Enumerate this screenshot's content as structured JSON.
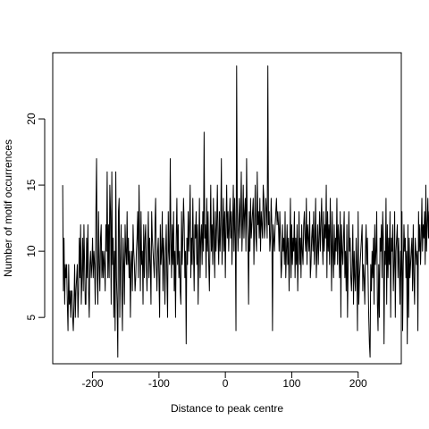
{
  "chart_data": {
    "type": "line",
    "title": "",
    "xlabel": "Distance to peak centre",
    "ylabel": "Number of motif occurrences",
    "xlim": [
      -260,
      265
    ],
    "ylim": [
      1.5,
      25
    ],
    "x_ticks": [
      -200,
      -100,
      0,
      100,
      200
    ],
    "x_tick_labels": [
      "-200",
      "-100",
      "0",
      "100",
      "200"
    ],
    "y_ticks": [
      5,
      10,
      15,
      20
    ],
    "y_tick_labels": [
      "5",
      "10",
      "15",
      "20"
    ],
    "grid": false,
    "legend": "none",
    "line_color": "#000000",
    "series": [
      {
        "x_start": -245,
        "x_step": 1,
        "values": [
          15,
          7,
          11,
          6,
          9,
          8,
          9,
          6,
          4,
          9,
          6,
          7,
          5,
          7,
          7,
          5,
          4,
          6,
          9,
          5,
          7,
          8,
          9,
          5,
          7,
          11,
          8,
          12,
          6,
          8,
          11,
          7,
          12,
          9,
          6,
          6,
          11,
          8,
          12,
          7,
          5,
          9,
          10,
          8,
          9,
          11,
          8,
          10,
          9,
          6,
          13,
          17,
          8,
          6,
          13,
          9,
          7,
          11,
          12,
          8,
          10,
          8,
          10,
          9,
          7,
          12,
          10,
          16,
          8,
          12,
          8,
          15,
          13,
          6,
          16,
          9,
          11,
          5,
          10,
          4,
          16,
          8,
          6,
          2,
          13,
          14,
          5,
          9,
          12,
          7,
          4,
          11,
          9,
          6,
          12,
          10,
          9,
          13,
          9,
          11,
          8,
          10,
          5,
          9,
          10,
          7,
          12,
          10,
          9,
          7,
          8,
          10,
          11,
          13,
          8,
          15,
          11,
          7,
          13,
          9,
          10,
          6,
          12,
          8,
          11,
          12,
          9,
          7,
          10,
          13,
          8,
          11,
          9,
          6,
          13,
          11,
          10,
          9,
          8,
          12,
          14,
          9,
          7,
          10,
          11,
          8,
          5,
          12,
          9,
          10,
          13,
          7,
          11,
          9,
          6,
          10,
          12,
          8,
          5,
          13,
          10,
          9,
          17,
          11,
          8,
          12,
          9,
          13,
          7,
          10,
          5,
          11,
          14,
          9,
          12,
          8,
          10,
          7,
          6,
          13,
          9,
          11,
          14,
          12,
          8,
          10,
          3,
          11,
          9,
          13,
          10,
          12,
          15,
          8,
          11,
          9,
          14,
          10,
          7,
          12,
          11,
          13,
          9,
          12,
          6,
          10,
          14,
          8,
          11,
          12,
          9,
          13,
          10,
          19,
          11,
          12,
          8,
          14,
          10,
          13,
          9,
          7,
          11,
          15,
          10,
          12,
          9,
          14,
          11,
          8,
          13,
          10,
          12,
          15,
          11,
          9,
          13,
          10,
          12,
          17,
          9,
          11,
          14,
          10,
          13,
          8,
          12,
          15,
          11,
          13,
          10,
          12,
          14,
          11,
          13,
          9,
          12,
          15,
          10,
          14,
          11,
          4,
          24,
          13,
          10,
          12,
          14,
          11,
          13,
          16,
          10,
          12,
          15,
          11,
          13,
          14,
          10,
          17,
          12,
          11,
          6,
          13,
          10,
          14,
          11,
          12,
          13,
          14,
          9,
          12,
          15,
          11,
          10,
          16,
          12,
          13,
          11,
          14,
          10,
          13,
          12,
          11,
          15,
          14,
          11,
          12,
          14,
          13,
          11,
          24,
          12,
          13,
          10,
          11,
          14,
          12,
          4,
          12,
          11,
          10,
          12,
          13,
          14,
          12,
          13,
          12,
          10,
          13,
          11,
          8,
          9,
          12,
          10,
          11,
          9,
          13,
          8,
          10,
          12,
          9,
          11,
          7,
          10,
          14,
          8,
          12,
          9,
          11,
          10,
          13,
          8,
          11,
          9,
          12,
          7,
          10,
          13,
          9,
          11,
          8,
          12,
          10,
          9,
          12,
          13,
          11,
          10,
          14,
          9,
          12,
          11,
          10,
          13,
          8,
          9,
          11,
          12,
          10,
          13,
          9,
          11,
          14,
          8,
          10,
          12,
          9,
          11,
          13,
          10,
          12,
          14,
          11,
          9,
          13,
          10,
          12,
          11,
          15,
          8,
          13,
          10,
          12,
          9,
          14,
          11,
          7,
          13,
          10,
          8,
          12,
          9,
          11,
          10,
          14,
          9,
          12,
          11,
          8,
          13,
          5,
          12,
          10,
          9,
          11,
          13,
          8,
          10,
          7,
          12,
          5,
          9,
          13,
          10,
          11,
          8,
          7,
          9,
          12,
          6,
          10,
          8,
          7,
          11,
          9,
          4,
          13,
          6,
          8,
          9,
          10,
          11,
          12,
          7,
          9,
          8,
          6,
          10,
          12,
          9,
          11,
          8,
          5,
          3,
          2,
          9,
          7,
          10,
          8,
          11,
          6,
          12,
          9,
          10,
          13,
          6,
          4,
          9,
          5,
          11,
          10,
          12,
          8,
          13,
          11,
          3,
          10,
          9,
          14,
          6,
          12,
          8,
          11,
          9,
          13,
          5,
          11,
          10,
          12,
          7,
          9,
          13,
          5,
          10,
          11,
          12,
          8,
          11,
          9,
          6,
          10,
          8,
          13,
          4,
          9,
          12,
          10,
          11,
          8,
          10,
          3,
          12,
          5,
          11,
          8,
          9,
          10,
          11,
          7,
          12,
          8,
          6,
          11,
          10,
          9,
          10,
          4,
          13,
          10,
          12,
          9,
          11,
          14,
          10,
          12,
          11,
          13,
          9,
          15,
          10,
          12,
          14,
          11,
          13,
          9,
          12,
          7,
          10,
          11,
          8,
          9,
          11,
          12,
          8,
          10,
          9,
          11,
          7,
          10,
          14,
          6,
          11,
          9,
          10,
          12,
          8,
          11,
          10,
          14,
          10,
          11,
          9,
          12,
          7,
          10,
          6,
          9,
          11,
          12,
          5,
          10,
          3,
          11,
          9,
          12,
          14,
          10,
          11,
          8,
          12,
          9,
          7,
          10,
          13,
          8,
          11,
          9,
          15,
          10,
          8,
          12,
          15,
          9,
          11,
          13,
          10,
          12,
          9,
          11,
          8,
          13,
          10,
          9,
          12,
          11,
          14,
          10,
          12,
          11,
          13,
          9,
          12,
          10,
          8,
          11,
          13,
          10,
          12,
          9,
          11,
          8,
          10,
          9,
          12,
          11,
          10,
          12,
          9,
          13,
          10,
          12,
          11,
          9,
          14,
          10,
          11,
          13,
          9,
          12,
          10,
          7,
          11,
          9,
          5,
          10,
          12,
          8,
          11,
          9,
          6,
          10,
          12,
          7,
          9,
          11,
          6,
          12,
          10,
          8,
          6,
          9,
          11,
          7,
          10,
          11
        ]
      }
    ]
  }
}
